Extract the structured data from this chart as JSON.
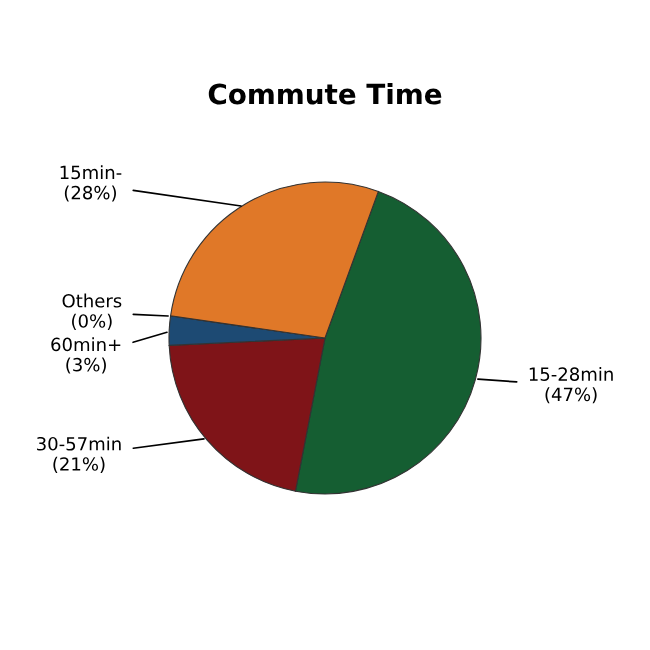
{
  "chart_data": {
    "type": "pie",
    "title": "Commute Time",
    "categories": [
      "15-28min",
      "30-57min",
      "60min+",
      "Others",
      "15min-"
    ],
    "values": [
      47,
      21,
      3,
      0,
      28
    ],
    "value_labels": [
      "(47%)",
      "(21%)",
      "(3%)",
      "(0%)",
      "(28%)"
    ],
    "colors": [
      "#155e32",
      "#7f1418",
      "#1d4a73",
      "#a0a0a0",
      "#e07828"
    ]
  }
}
